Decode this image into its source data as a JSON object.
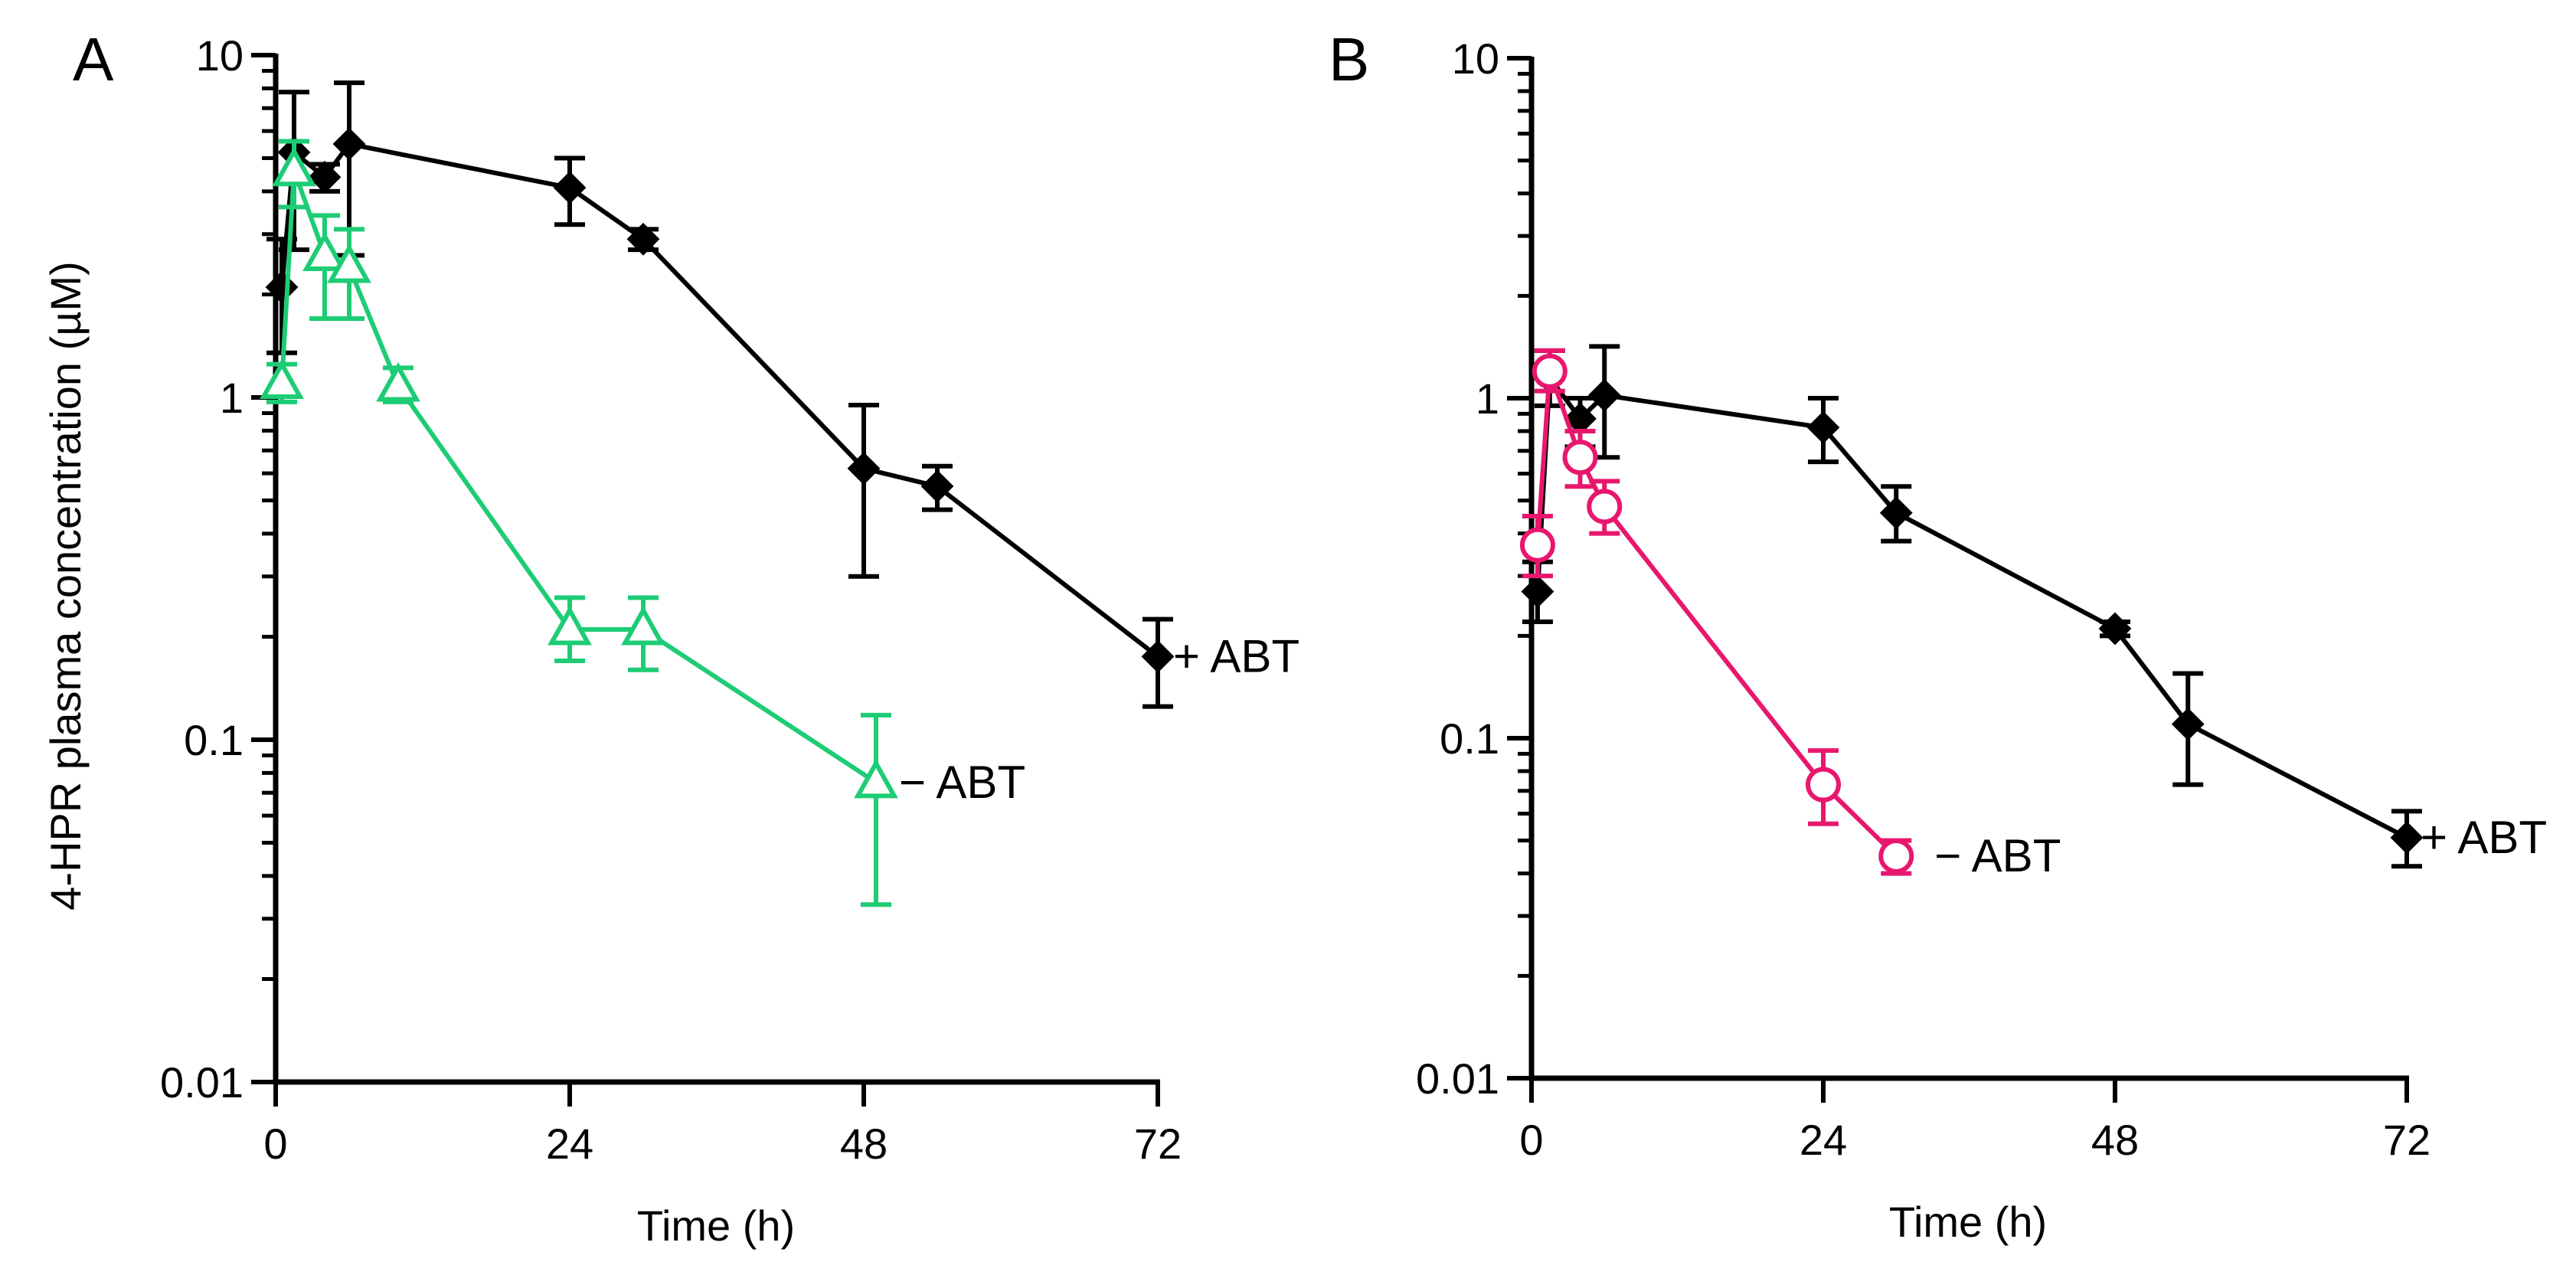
{
  "figure": {
    "y_axis_label": "4-HPR plasma concentration (µM)"
  },
  "colors": {
    "axis": "#000000",
    "plus_abt": "#000000",
    "minus_abt_A": "#1dcc75",
    "minus_abt_B": "#e8176e"
  },
  "chart_data": [
    {
      "type": "line",
      "panel": "A",
      "xlabel": "Time (h)",
      "ylabel": "4-HPR plasma concentration (µM)",
      "yscale": "log",
      "xlim": [
        0,
        72
      ],
      "ylim": [
        0.01,
        10
      ],
      "x_ticks": [
        0,
        24,
        48,
        72
      ],
      "y_ticks": [
        0.01,
        0.1,
        1,
        10
      ],
      "y_tick_labels": [
        "0.01",
        "0.1",
        "1",
        "10"
      ],
      "series": [
        {
          "name": "+ ABT",
          "marker": "diamond",
          "color": "#000000",
          "x": [
            0.5,
            1.5,
            4,
            6,
            24,
            30,
            48,
            54,
            72
          ],
          "y": [
            2.1,
            5.2,
            4.4,
            5.5,
            4.1,
            2.9,
            0.62,
            0.55,
            0.175
          ],
          "err_low": [
            1.35,
            2.7,
            4.0,
            2.6,
            3.2,
            2.7,
            0.3,
            0.47,
            0.125
          ],
          "err_high": [
            2.9,
            7.8,
            4.8,
            8.3,
            5.0,
            3.1,
            0.95,
            0.63,
            0.225
          ]
        },
        {
          "name": "− ABT",
          "marker": "triangle",
          "color": "#1dcc75",
          "x": [
            0.5,
            1.5,
            4,
            6,
            10,
            24,
            30,
            49
          ],
          "y": [
            1.1,
            4.6,
            2.6,
            2.4,
            1.08,
            0.21,
            0.21,
            0.075
          ],
          "err_low": [
            0.97,
            3.6,
            1.7,
            1.7,
            0.97,
            0.17,
            0.16,
            0.033
          ],
          "err_high": [
            1.25,
            5.6,
            3.4,
            3.1,
            1.22,
            0.26,
            0.26,
            0.118
          ]
        }
      ]
    },
    {
      "type": "line",
      "panel": "B",
      "xlabel": "Time (h)",
      "ylabel": "",
      "yscale": "log",
      "xlim": [
        0,
        72
      ],
      "ylim": [
        0.01,
        10
      ],
      "x_ticks": [
        0,
        24,
        48,
        72
      ],
      "y_ticks": [
        0.01,
        0.1,
        1,
        10
      ],
      "y_tick_labels": [
        "0.01",
        "0.1",
        "1",
        "10"
      ],
      "series": [
        {
          "name": "+ ABT",
          "marker": "diamond",
          "color": "#000000",
          "x": [
            0.5,
            1.5,
            4,
            6,
            24,
            30,
            48,
            54,
            72
          ],
          "y": [
            0.27,
            1.15,
            0.87,
            1.02,
            0.82,
            0.46,
            0.21,
            0.11,
            0.051
          ],
          "err_low": [
            0.22,
            0.95,
            0.72,
            0.67,
            0.65,
            0.38,
            0.2,
            0.073,
            0.042
          ],
          "err_high": [
            0.33,
            1.38,
            1.0,
            1.42,
            1.0,
            0.55,
            0.22,
            0.155,
            0.061
          ]
        },
        {
          "name": "− ABT",
          "marker": "circle",
          "color": "#e8176e",
          "x": [
            0.5,
            1.5,
            4,
            6,
            24,
            30
          ],
          "y": [
            0.37,
            1.2,
            0.67,
            0.48,
            0.073,
            0.045
          ],
          "err_low": [
            0.3,
            1.05,
            0.55,
            0.4,
            0.056,
            0.04
          ],
          "err_high": [
            0.45,
            1.38,
            0.8,
            0.57,
            0.092,
            0.05
          ]
        }
      ]
    }
  ]
}
